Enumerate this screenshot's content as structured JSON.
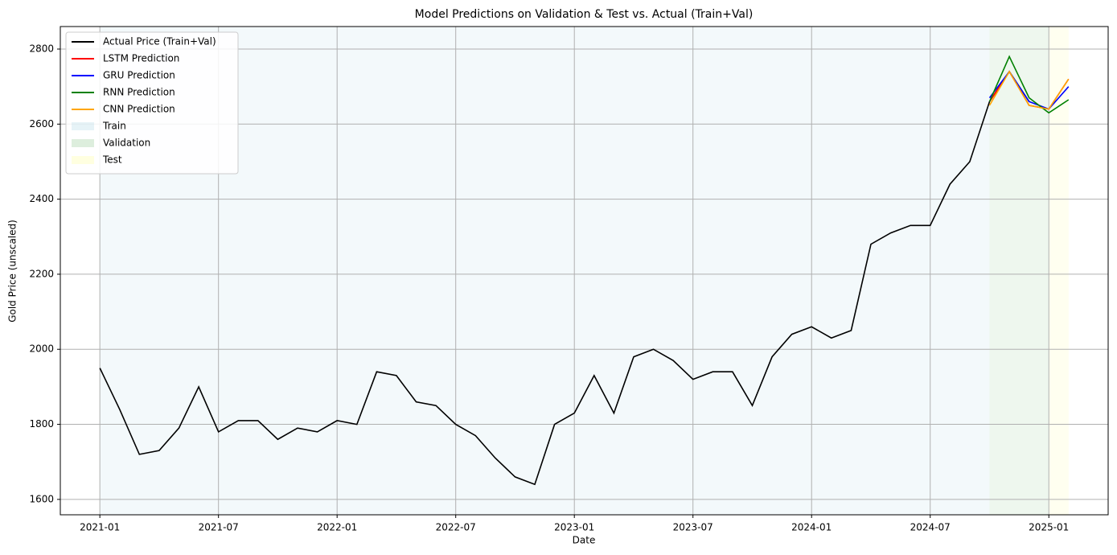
{
  "chart_data": {
    "type": "line",
    "title": "Model Predictions on Validation & Test vs. Actual (Train+Val)",
    "x_label": "Date",
    "y_label": "Gold Price (unscaled)",
    "x": [
      "2021-01",
      "2021-02",
      "2021-03",
      "2021-04",
      "2021-05",
      "2021-06",
      "2021-07",
      "2021-08",
      "2021-09",
      "2021-10",
      "2021-11",
      "2021-12",
      "2022-01",
      "2022-02",
      "2022-03",
      "2022-04",
      "2022-05",
      "2022-06",
      "2022-07",
      "2022-08",
      "2022-09",
      "2022-10",
      "2022-11",
      "2022-12",
      "2023-01",
      "2023-02",
      "2023-03",
      "2023-04",
      "2023-05",
      "2023-06",
      "2023-07",
      "2023-08",
      "2023-09",
      "2023-10",
      "2023-11",
      "2023-12",
      "2024-01",
      "2024-02",
      "2024-03",
      "2024-04",
      "2024-05",
      "2024-06",
      "2024-07",
      "2024-08",
      "2024-09",
      "2024-10",
      "2024-11",
      "2024-12",
      "2025-01",
      "2025-02"
    ],
    "series": [
      {
        "name": "Actual Price (Train+Val)",
        "color": "#000000",
        "values": [
          1950,
          1840,
          1720,
          1730,
          1790,
          1900,
          1780,
          1810,
          1810,
          1760,
          1790,
          1780,
          1810,
          1800,
          1940,
          1930,
          1860,
          1850,
          1800,
          1770,
          1710,
          1660,
          1640,
          1800,
          1830,
          1930,
          1830,
          1980,
          2000,
          1970,
          1920,
          1940,
          1940,
          1850,
          1980,
          2040,
          2060,
          2030,
          2050,
          2280,
          2310,
          2330,
          2330,
          2440,
          2500,
          2660,
          2740,
          2660,
          null,
          null
        ]
      },
      {
        "name": "LSTM Prediction",
        "color": "#ff0000",
        "values": [
          null,
          null,
          null,
          null,
          null,
          null,
          null,
          null,
          null,
          null,
          null,
          null,
          null,
          null,
          null,
          null,
          null,
          null,
          null,
          null,
          null,
          null,
          null,
          null,
          null,
          null,
          null,
          null,
          null,
          null,
          null,
          null,
          null,
          null,
          null,
          null,
          null,
          null,
          null,
          null,
          null,
          null,
          null,
          null,
          null,
          2660,
          2740,
          2650,
          2640,
          2720
        ]
      },
      {
        "name": "GRU Prediction",
        "color": "#0000ff",
        "values": [
          null,
          null,
          null,
          null,
          null,
          null,
          null,
          null,
          null,
          null,
          null,
          null,
          null,
          null,
          null,
          null,
          null,
          null,
          null,
          null,
          null,
          null,
          null,
          null,
          null,
          null,
          null,
          null,
          null,
          null,
          null,
          null,
          null,
          null,
          null,
          null,
          null,
          null,
          null,
          null,
          null,
          null,
          null,
          null,
          null,
          2670,
          2740,
          2660,
          2640,
          2700
        ]
      },
      {
        "name": "RNN Prediction",
        "color": "#008000",
        "values": [
          null,
          null,
          null,
          null,
          null,
          null,
          null,
          null,
          null,
          null,
          null,
          null,
          null,
          null,
          null,
          null,
          null,
          null,
          null,
          null,
          null,
          null,
          null,
          null,
          null,
          null,
          null,
          null,
          null,
          null,
          null,
          null,
          null,
          null,
          null,
          null,
          null,
          null,
          null,
          null,
          null,
          null,
          null,
          null,
          null,
          2660,
          2780,
          2670,
          2630,
          2665
        ]
      },
      {
        "name": "CNN Prediction",
        "color": "#ffa500",
        "values": [
          null,
          null,
          null,
          null,
          null,
          null,
          null,
          null,
          null,
          null,
          null,
          null,
          null,
          null,
          null,
          null,
          null,
          null,
          null,
          null,
          null,
          null,
          null,
          null,
          null,
          null,
          null,
          null,
          null,
          null,
          null,
          null,
          null,
          null,
          null,
          null,
          null,
          null,
          null,
          null,
          null,
          null,
          null,
          null,
          null,
          2650,
          2740,
          2650,
          2640,
          2720
        ]
      }
    ],
    "spans": [
      {
        "name": "Train",
        "start": "2021-01",
        "end": "2024-10",
        "color": "#add8e6"
      },
      {
        "name": "Validation",
        "start": "2024-10",
        "end": "2025-01",
        "color": "#90c690"
      },
      {
        "name": "Test",
        "start": "2025-01",
        "end": "2025-02",
        "color": "#ffff99"
      }
    ],
    "xlim": [
      "2020-11",
      "2025-04"
    ],
    "xticks": [
      "2021-01",
      "2021-07",
      "2022-01",
      "2022-07",
      "2023-01",
      "2023-07",
      "2024-01",
      "2024-07",
      "2025-01"
    ],
    "ylim": [
      1559,
      2860
    ],
    "yticks": [
      1600,
      1800,
      2000,
      2200,
      2400,
      2600,
      2800
    ],
    "grid": true,
    "legend": "upper-left"
  }
}
